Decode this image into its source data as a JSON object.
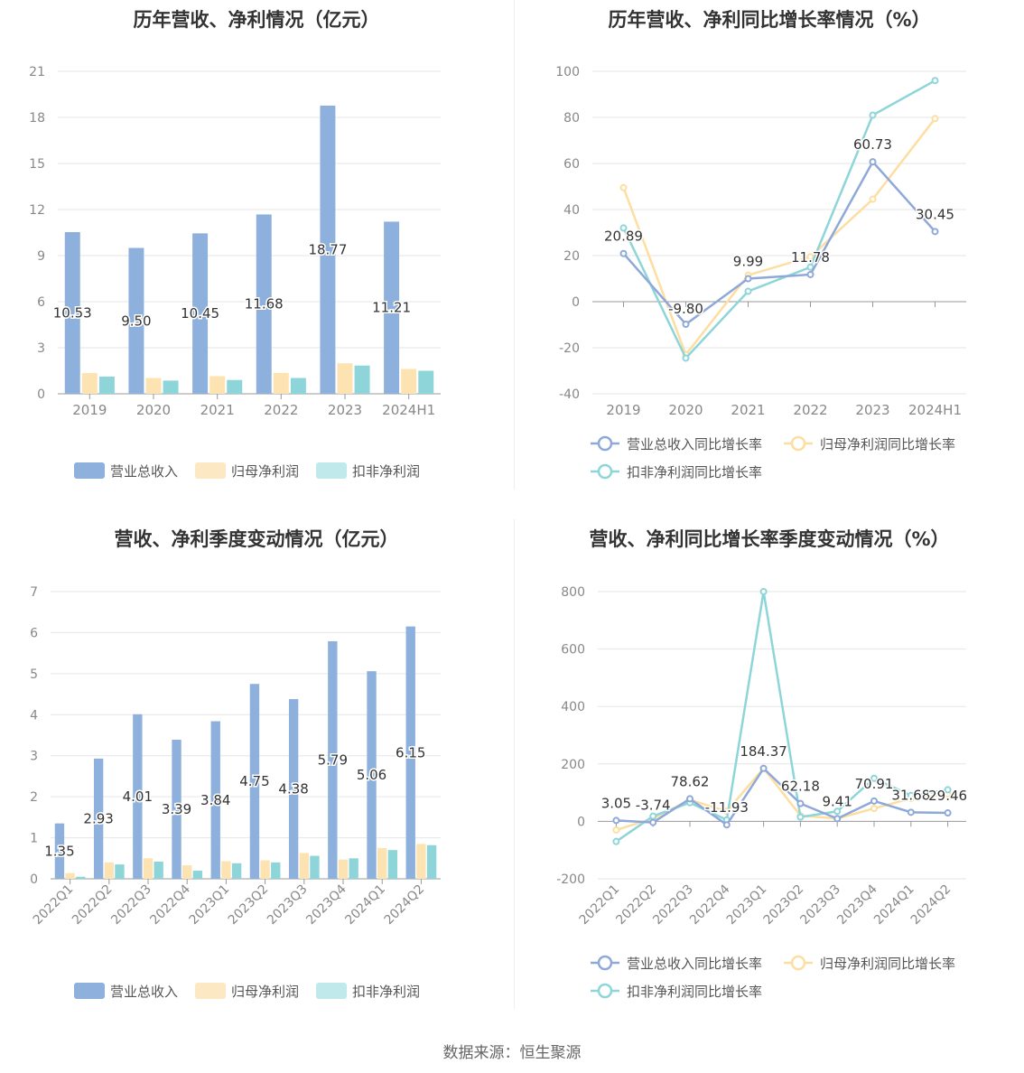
{
  "colors": {
    "revenue": "#8eb0dd",
    "net_profit": "#fde3b2",
    "deducted_profit": "#8dd5d9",
    "revenue_line": "#8ea9d9",
    "net_line": "#fddea0",
    "deducted_line": "#8dd5d9"
  },
  "source": "数据来源：恒生聚源",
  "chart_data": [
    {
      "id": "annual_amounts",
      "type": "bar",
      "title": "历年营收、净利情况（亿元）",
      "categories": [
        "2019",
        "2020",
        "2021",
        "2022",
        "2023",
        "2024H1"
      ],
      "ylim": [
        0,
        21
      ],
      "yticks": [
        0,
        3,
        6,
        9,
        12,
        15,
        18,
        21
      ],
      "series": [
        {
          "name": "营业总收入",
          "values": [
            10.53,
            9.5,
            10.45,
            11.68,
            18.77,
            11.21
          ],
          "labels": [
            "10.53",
            "9.50",
            "10.45",
            "11.68",
            "18.77",
            "11.21"
          ]
        },
        {
          "name": "归母净利润",
          "values": [
            1.35,
            1.03,
            1.15,
            1.36,
            1.99,
            1.62
          ]
        },
        {
          "name": "扣非净利润",
          "values": [
            1.12,
            0.86,
            0.9,
            1.03,
            1.84,
            1.5
          ]
        }
      ],
      "legend": "bottom"
    },
    {
      "id": "annual_growth",
      "type": "line",
      "title": "历年营收、净利同比增长率情况（%）",
      "categories": [
        "2019",
        "2020",
        "2021",
        "2022",
        "2023",
        "2024H1"
      ],
      "ylim": [
        -40,
        100
      ],
      "yticks": [
        -40,
        -20,
        0,
        20,
        40,
        60,
        80,
        100
      ],
      "series": [
        {
          "name": "营业总收入同比增长率",
          "values": [
            20.89,
            -9.8,
            9.99,
            11.78,
            60.73,
            30.45
          ],
          "labels": [
            "20.89",
            "-9.80",
            "9.99",
            "11.78",
            "60.73",
            "30.45"
          ]
        },
        {
          "name": "归母净利润同比增长率",
          "values": [
            49.5,
            -23,
            11.5,
            19.5,
            44.5,
            79.5
          ]
        },
        {
          "name": "扣非净利润同比增长率",
          "values": [
            32,
            -24.5,
            4.5,
            15,
            81,
            96
          ]
        }
      ],
      "legend": "bottom"
    },
    {
      "id": "quarterly_amounts",
      "type": "bar",
      "title": "营收、净利季度变动情况（亿元）",
      "categories": [
        "2022Q1",
        "2022Q2",
        "2022Q3",
        "2022Q4",
        "2023Q1",
        "2023Q2",
        "2023Q3",
        "2023Q4",
        "2024Q1",
        "2024Q2"
      ],
      "ylim": [
        0,
        7
      ],
      "yticks": [
        0,
        1,
        2,
        3,
        4,
        5,
        6,
        7
      ],
      "series": [
        {
          "name": "营业总收入",
          "values": [
            1.35,
            2.93,
            4.01,
            3.39,
            3.84,
            4.75,
            4.38,
            5.79,
            5.06,
            6.15
          ],
          "labels": [
            "1.35",
            "2.93",
            "4.01",
            "3.39",
            "3.84",
            "4.75",
            "4.38",
            "5.79",
            "5.06",
            "6.15"
          ]
        },
        {
          "name": "归母净利润",
          "values": [
            0.14,
            0.4,
            0.5,
            0.33,
            0.43,
            0.45,
            0.63,
            0.47,
            0.75,
            0.85
          ]
        },
        {
          "name": "扣非净利润",
          "values": [
            0.05,
            0.35,
            0.42,
            0.2,
            0.38,
            0.4,
            0.56,
            0.5,
            0.7,
            0.82
          ]
        }
      ],
      "legend": "bottom"
    },
    {
      "id": "quarterly_growth",
      "type": "line",
      "title": "营收、净利同比增长率季度变动情况（%）",
      "categories": [
        "2022Q1",
        "2022Q2",
        "2022Q3",
        "2022Q4",
        "2023Q1",
        "2023Q2",
        "2023Q3",
        "2023Q4",
        "2024Q1",
        "2024Q2"
      ],
      "ylim": [
        -200,
        800
      ],
      "yticks": [
        -200,
        0,
        200,
        400,
        600,
        800
      ],
      "series": [
        {
          "name": "营业总收入同比增长率",
          "values": [
            3.05,
            -3.74,
            78.62,
            -11.93,
            184.37,
            62.18,
            9.41,
            70.91,
            31.68,
            29.46
          ],
          "labels": [
            "3.05",
            "-3.74",
            "78.62",
            "-11.93",
            "184.37",
            "62.18",
            "9.41",
            "70.91",
            "31.68",
            "29.46"
          ]
        },
        {
          "name": "归母净利润同比增长率",
          "values": [
            -30,
            10,
            75,
            35,
            185,
            20,
            10,
            45,
            80,
            95
          ]
        },
        {
          "name": "扣非净利润同比增长率",
          "values": [
            -70,
            18,
            65,
            5,
            800,
            15,
            35,
            150,
            90,
            110
          ]
        }
      ],
      "legend": "bottom"
    }
  ]
}
